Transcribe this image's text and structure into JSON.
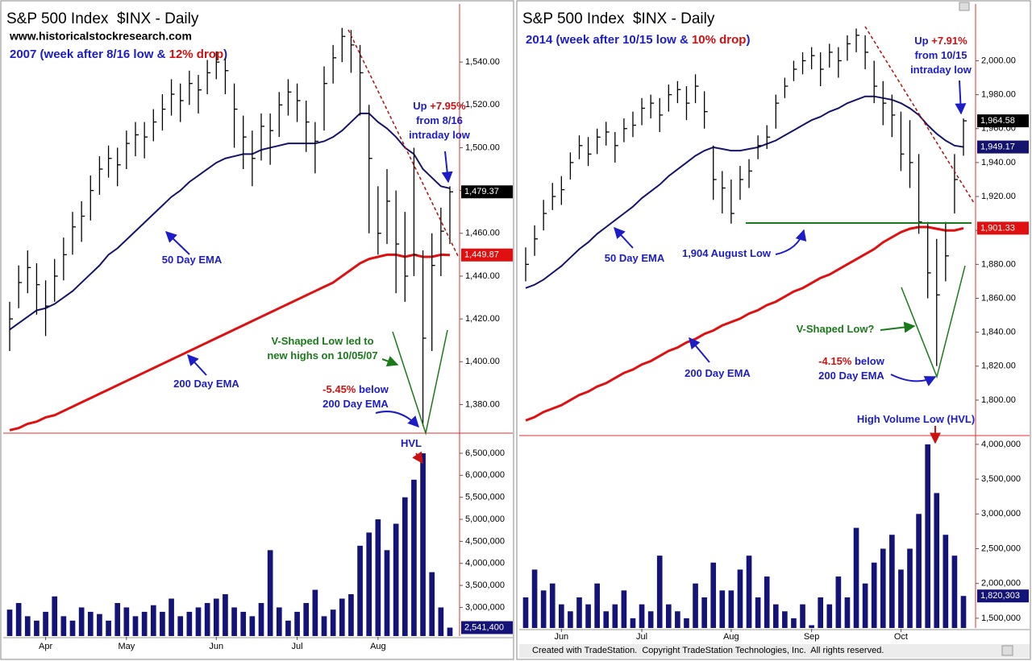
{
  "chart_data": [
    {
      "type": "ohlc",
      "title": "S&P 500 Index  $INX - Daily",
      "website": "www.historicalstockresearch.com",
      "subtitle_parts": [
        {
          "text": "2007 (week after 8/16 low & ",
          "color": "#1c1cc8"
        },
        {
          "text": "12% drop",
          "color": "#cc1111"
        },
        {
          "text": ")",
          "color": "#1c1cc8"
        }
      ],
      "annotations": [
        {
          "lines": [
            [
              {
                "text": "Up ",
                "color": "#1c1cc8"
              },
              {
                "text": "+7.95%",
                "color": "#cc1111"
              }
            ],
            [
              {
                "text": "from 8/16",
                "color": "#1c1cc8"
              }
            ],
            [
              {
                "text": "intraday low",
                "color": "#1c1cc8"
              }
            ]
          ]
        },
        {
          "lines": [
            [
              {
                "text": "50 Day EMA",
                "color": "#1c1cc8"
              }
            ]
          ]
        },
        {
          "lines": [
            [
              {
                "text": "200 Day EMA",
                "color": "#1c1cc8"
              }
            ]
          ]
        },
        {
          "lines": [
            [
              {
                "text": "V-Shaped Low led to",
                "color": "#1a7a1a"
              }
            ],
            [
              {
                "text": "new highs on 10/05/07",
                "color": "#1a7a1a"
              }
            ]
          ]
        },
        {
          "lines": [
            [
              {
                "text": "-5.45%",
                "color": "#cc1111"
              },
              {
                "text": " below",
                "color": "#1c1cc8"
              }
            ],
            [
              {
                "text": "200 Day EMA",
                "color": "#1c1cc8"
              }
            ]
          ]
        },
        {
          "lines": [
            [
              {
                "text": "HVL",
                "color": "#1c1cc8"
              }
            ]
          ]
        }
      ],
      "xticks": [
        {
          "value": 4,
          "label": "Apr"
        },
        {
          "value": 13,
          "label": "May"
        },
        {
          "value": 23,
          "label": "Jun"
        },
        {
          "value": 32,
          "label": "Jul"
        },
        {
          "value": 41,
          "label": "Aug"
        }
      ],
      "ylim": [
        1367,
        1566
      ],
      "yticks": [
        {
          "value": 1380,
          "label": "1,380.00"
        },
        {
          "value": 1400,
          "label": "1,400.00"
        },
        {
          "value": 1420,
          "label": "1,420.00"
        },
        {
          "value": 1440,
          "label": "1,440.00"
        },
        {
          "value": 1460,
          "label": "1,460.00"
        },
        {
          "value": 1480,
          "label": "1,480.00"
        },
        {
          "value": 1500,
          "label": "1,500.00"
        },
        {
          "value": 1520,
          "label": "1,520.00"
        },
        {
          "value": 1540,
          "label": "1,540.00"
        }
      ],
      "bar_color": "#000000",
      "high": [
        1428,
        1445,
        1452,
        1446,
        1438,
        1448,
        1458,
        1470,
        1475,
        1487,
        1496,
        1501,
        1500,
        1508,
        1512,
        1512,
        1518,
        1525,
        1532,
        1530,
        1536,
        1534,
        1541,
        1545,
        1542,
        1530,
        1515,
        1508,
        1516,
        1516,
        1526,
        1532,
        1530,
        1522,
        1512,
        1538,
        1548,
        1556,
        1555,
        1548,
        1520,
        1482,
        1490,
        1480,
        1470,
        1500,
        1452,
        1460,
        1472,
        1482
      ],
      "low": [
        1405,
        1425,
        1432,
        1422,
        1412,
        1428,
        1438,
        1450,
        1456,
        1466,
        1478,
        1486,
        1482,
        1490,
        1496,
        1495,
        1503,
        1508,
        1515,
        1512,
        1520,
        1516,
        1525,
        1532,
        1525,
        1500,
        1490,
        1482,
        1494,
        1492,
        1505,
        1515,
        1512,
        1498,
        1488,
        1508,
        1530,
        1540,
        1535,
        1515,
        1460,
        1450,
        1455,
        1432,
        1428,
        1440,
        1370,
        1405,
        1440,
        1455
      ],
      "close": [
        1420,
        1437,
        1444,
        1436,
        1426,
        1440,
        1450,
        1463,
        1468,
        1480,
        1490,
        1495,
        1492,
        1502,
        1506,
        1505,
        1512,
        1518,
        1525,
        1522,
        1530,
        1527,
        1535,
        1540,
        1536,
        1518,
        1505,
        1495,
        1510,
        1508,
        1520,
        1526,
        1522,
        1512,
        1503,
        1530,
        1542,
        1552,
        1548,
        1535,
        1495,
        1460,
        1475,
        1455,
        1440,
        1450,
        1411,
        1445,
        1461,
        1479.37
      ],
      "close_label": "1,479.37",
      "ema50": {
        "color": "#14146e",
        "values": [
          1415,
          1418,
          1421,
          1424,
          1425,
          1427,
          1430,
          1433,
          1437,
          1441,
          1445,
          1450,
          1453,
          1457,
          1461,
          1465,
          1469,
          1473,
          1477,
          1480,
          1484,
          1487,
          1490,
          1493,
          1495,
          1496,
          1497,
          1497,
          1499,
          1500,
          1501,
          1502,
          1502,
          1502,
          1502,
          1503,
          1505,
          1508,
          1512,
          1516,
          1516,
          1512,
          1509,
          1505,
          1500,
          1497,
          1490,
          1486,
          1482,
          1481
        ]
      },
      "ema200": {
        "color": "#e01010",
        "values": [
          1368,
          1369,
          1371,
          1372,
          1374,
          1375,
          1377,
          1379,
          1381,
          1383,
          1385,
          1387,
          1389,
          1391,
          1393,
          1395,
          1397,
          1399,
          1401,
          1403,
          1405,
          1407,
          1409,
          1411,
          1413,
          1415,
          1417,
          1419,
          1421,
          1423,
          1425,
          1427,
          1429,
          1431,
          1433,
          1435,
          1437,
          1440,
          1443,
          1446,
          1448,
          1449,
          1450,
          1450,
          1449,
          1450,
          1449,
          1449,
          1450,
          1449.87
        ]
      },
      "ema200_label": "1,449.87",
      "volume": {
        "color": "#141478",
        "values": [
          2950000,
          3100000,
          2800000,
          2700000,
          2900000,
          3250000,
          2800000,
          2700000,
          3000000,
          2900000,
          2850000,
          2700000,
          3100000,
          3000000,
          2800000,
          2900000,
          3050000,
          2900000,
          3200000,
          2800000,
          2900000,
          3000000,
          3100000,
          3200000,
          3300000,
          3000000,
          2900000,
          2800000,
          3100000,
          4300000,
          3000000,
          2700000,
          2900000,
          3100000,
          3400000,
          2800000,
          2950000,
          3200000,
          3300000,
          4400000,
          4700000,
          5000000,
          4300000,
          4900000,
          5500000,
          5900000,
          6500000,
          3800000,
          3000000,
          2541400
        ]
      },
      "volume_label": "2,541,400",
      "volume_ylim": [
        2350000,
        6920000
      ],
      "volume_yticks": [
        {
          "value": 3000000,
          "label": "3,000,000"
        },
        {
          "value": 3500000,
          "label": "3,500,000"
        },
        {
          "value": 4000000,
          "label": "4,000,000"
        },
        {
          "value": 4500000,
          "label": "4,500,000"
        },
        {
          "value": 5000000,
          "label": "5,000,000"
        },
        {
          "value": 5500000,
          "label": "5,500,000"
        },
        {
          "value": 6000000,
          "label": "6,000,000"
        },
        {
          "value": 6500000,
          "label": "6,500,000"
        }
      ]
    },
    {
      "type": "ohlc",
      "title": "S&P 500 Index  $INX - Daily",
      "subtitle_parts": [
        {
          "text": "2014 (week after 10/15 low & ",
          "color": "#1c1cc8"
        },
        {
          "text": "10% drop",
          "color": "#cc1111"
        },
        {
          "text": ")",
          "color": "#1c1cc8"
        }
      ],
      "annotations": [
        {
          "lines": [
            [
              {
                "text": "Up ",
                "color": "#1c1cc8"
              },
              {
                "text": "+7.91%",
                "color": "#cc1111"
              }
            ],
            [
              {
                "text": "from 10/15",
                "color": "#1c1cc8"
              }
            ],
            [
              {
                "text": "intraday low",
                "color": "#1c1cc8"
              }
            ]
          ]
        },
        {
          "lines": [
            [
              {
                "text": "50 Day EMA",
                "color": "#1c1cc8"
              }
            ]
          ]
        },
        {
          "lines": [
            [
              {
                "text": "1,904 August Low",
                "color": "#1c1cc8"
              }
            ]
          ]
        },
        {
          "lines": [
            [
              {
                "text": "V-Shaped Low?",
                "color": "#1a7a1a"
              }
            ]
          ]
        },
        {
          "lines": [
            [
              {
                "text": "-4.15%",
                "color": "#cc1111"
              },
              {
                "text": " below",
                "color": "#1c1cc8"
              }
            ],
            [
              {
                "text": "200 Day EMA",
                "color": "#1c1cc8"
              }
            ]
          ]
        },
        {
          "lines": [
            [
              {
                "text": "200 Day EMA",
                "color": "#1c1cc8"
              }
            ]
          ]
        },
        {
          "lines": [
            [
              {
                "text": "High Volume Low (HVL)",
                "color": "#1c1cc8"
              }
            ]
          ]
        }
      ],
      "footer": "Created with TradeStation.  Copyright TradeStation Technologies, Inc.  All rights reserved.",
      "xticks": [
        {
          "value": 4,
          "label": "Jun"
        },
        {
          "value": 13,
          "label": "Jul"
        },
        {
          "value": 23,
          "label": "Aug"
        },
        {
          "value": 32,
          "label": "Sep"
        },
        {
          "value": 42,
          "label": "Oct"
        }
      ],
      "ylim": [
        1781,
        2032
      ],
      "yticks": [
        {
          "value": 1800,
          "label": "1,800.00"
        },
        {
          "value": 1820,
          "label": "1,820.00"
        },
        {
          "value": 1840,
          "label": "1,840.00"
        },
        {
          "value": 1860,
          "label": "1,860.00"
        },
        {
          "value": 1880,
          "label": "1,880.00"
        },
        {
          "value": 1900,
          "label": "1,900.00"
        },
        {
          "value": 1920,
          "label": "1,920.00"
        },
        {
          "value": 1940,
          "label": "1,940.00"
        },
        {
          "value": 1960,
          "label": "1,960.00"
        },
        {
          "value": 1980,
          "label": "1,980.00"
        },
        {
          "value": 2000,
          "label": "2,000.00"
        }
      ],
      "bar_color": "#000000",
      "high": [
        1890,
        1903,
        1918,
        1928,
        1932,
        1946,
        1956,
        1955,
        1960,
        1964,
        1958,
        1966,
        1970,
        1978,
        1980,
        1978,
        1986,
        1988,
        1985,
        1992,
        1982,
        1950,
        1935,
        1930,
        1938,
        1942,
        1956,
        1962,
        1980,
        1990,
        2000,
        2005,
        2008,
        2005,
        2010,
        2008,
        2015,
        2019,
        2015,
        2000,
        1988,
        1980,
        1970,
        1965,
        1945,
        1905,
        1895,
        1905,
        1945,
        1966
      ],
      "low": [
        1870,
        1885,
        1900,
        1912,
        1915,
        1930,
        1942,
        1938,
        1945,
        1950,
        1940,
        1952,
        1955,
        1962,
        1966,
        1958,
        1970,
        1975,
        1965,
        1975,
        1960,
        1918,
        1910,
        1904,
        1918,
        1925,
        1942,
        1948,
        1960,
        1978,
        1988,
        1992,
        1995,
        1985,
        1996,
        1990,
        2000,
        2005,
        1995,
        1975,
        1962,
        1955,
        1935,
        1925,
        1898,
        1860,
        1820,
        1870,
        1910,
        1944
      ],
      "close": [
        1880,
        1895,
        1910,
        1920,
        1924,
        1940,
        1950,
        1945,
        1955,
        1958,
        1950,
        1960,
        1962,
        1972,
        1975,
        1968,
        1980,
        1983,
        1975,
        1985,
        1970,
        1930,
        1925,
        1910,
        1930,
        1935,
        1950,
        1955,
        1975,
        1985,
        1995,
        2000,
        2003,
        1995,
        2005,
        2000,
        2010,
        2015,
        2005,
        1985,
        1975,
        1968,
        1945,
        1940,
        1905,
        1875,
        1862,
        1885,
        1930,
        1964.58
      ],
      "close_label": "1,964.58",
      "ema50": {
        "color": "#14146e",
        "values": [
          1866,
          1868,
          1871,
          1875,
          1879,
          1884,
          1889,
          1893,
          1898,
          1902,
          1906,
          1910,
          1914,
          1919,
          1923,
          1927,
          1932,
          1936,
          1940,
          1944,
          1947,
          1949,
          1948,
          1947,
          1947,
          1948,
          1949,
          1951,
          1953,
          1956,
          1959,
          1962,
          1965,
          1967,
          1970,
          1972,
          1975,
          1977,
          1979,
          1979,
          1978,
          1977,
          1975,
          1972,
          1968,
          1962,
          1957,
          1953,
          1950,
          1949.17
        ]
      },
      "ema50_label": "1,949.17",
      "ema200": {
        "color": "#e01010",
        "values": [
          1788,
          1790,
          1793,
          1795,
          1797,
          1800,
          1803,
          1805,
          1808,
          1810,
          1813,
          1816,
          1818,
          1821,
          1823,
          1826,
          1829,
          1831,
          1834,
          1836,
          1839,
          1841,
          1844,
          1846,
          1848,
          1851,
          1853,
          1856,
          1858,
          1861,
          1864,
          1866,
          1869,
          1872,
          1874,
          1877,
          1880,
          1883,
          1886,
          1889,
          1893,
          1896,
          1899,
          1901,
          1902,
          1902,
          1901,
          1900,
          1900,
          1901.33
        ]
      },
      "ema200_label": "1,901.33",
      "volume": {
        "color": "#141478",
        "values": [
          1800000,
          2200000,
          1900000,
          2000000,
          1700000,
          1600000,
          1800000,
          1700000,
          2000000,
          1600000,
          1700000,
          1900000,
          1500000,
          1700000,
          1600000,
          2400000,
          1700000,
          1600000,
          1500000,
          2000000,
          1800000,
          2300000,
          1900000,
          1900000,
          2200000,
          2400000,
          1800000,
          2100000,
          1700000,
          1600000,
          1500000,
          1700000,
          1400000,
          1800000,
          1700000,
          2100000,
          1800000,
          2800000,
          2000000,
          2300000,
          2500000,
          2700000,
          2200000,
          2500000,
          3000000,
          4000000,
          3300000,
          2700000,
          2400000,
          1820303
        ]
      },
      "volume_label": "1,820,303",
      "volume_ylim": [
        1360000,
        4080000
      ],
      "volume_yticks": [
        {
          "value": 1500000,
          "label": "1,500,000"
        },
        {
          "value": 2000000,
          "label": "2,000,000"
        },
        {
          "value": 2500000,
          "label": "2,500,000"
        },
        {
          "value": 3000000,
          "label": "3,000,000"
        },
        {
          "value": 3500000,
          "label": "3,500,000"
        },
        {
          "value": 4000000,
          "label": "4,000,000"
        }
      ]
    }
  ]
}
